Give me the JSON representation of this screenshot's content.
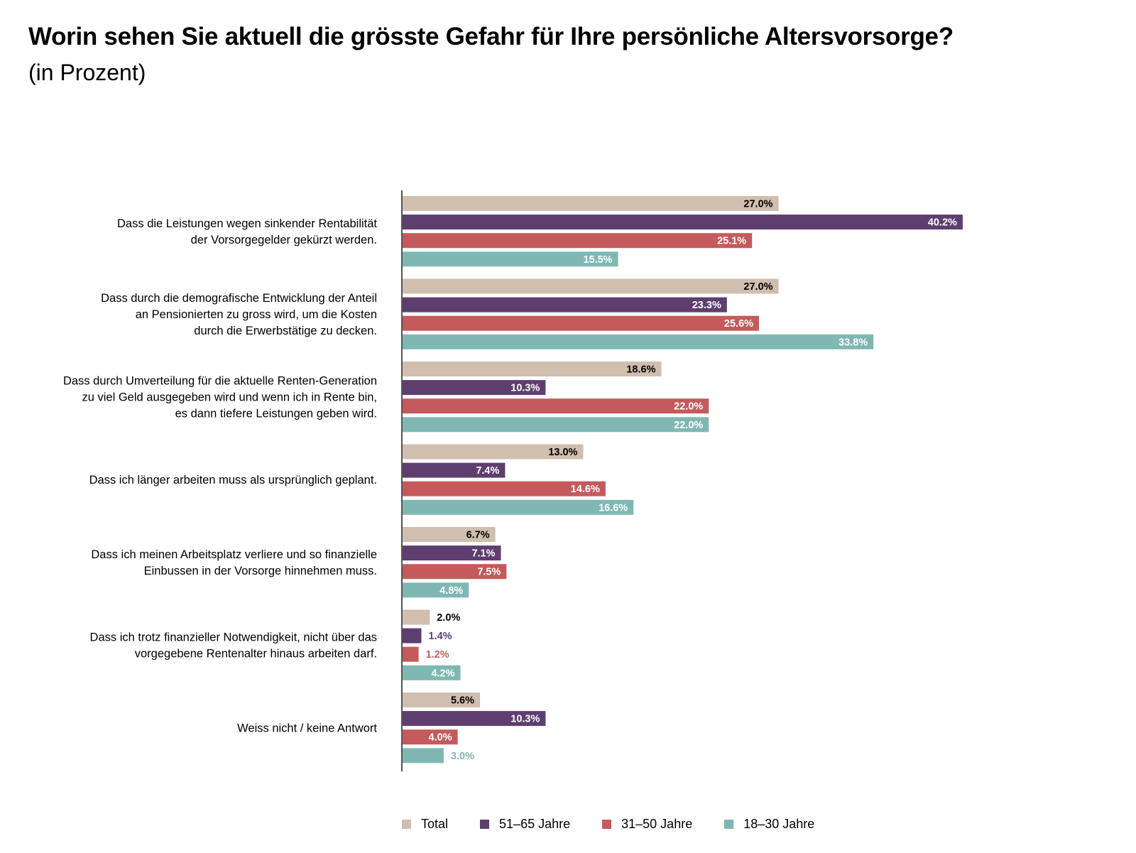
{
  "header": {
    "title": "Worin sehen Sie aktuell die grösste Gefahr für Ihre persönliche Altersvorsorge?",
    "subtitle": "(in Prozent)"
  },
  "chart_data": {
    "type": "bar",
    "orientation": "horizontal",
    "title": "Worin sehen Sie aktuell die grösste Gefahr für Ihre persönliche Altersvorsorge?",
    "subtitle": "(in Prozent)",
    "xlabel": "",
    "ylabel": "",
    "xlim": [
      0,
      40.2
    ],
    "grid": false,
    "legend_position": "bottom",
    "categories": [
      [
        "Dass die Leistungen wegen sinkender Rentabilität",
        "der Vorsorgegelder gekürzt werden."
      ],
      [
        "Dass durch die demografische Entwicklung der Anteil",
        "an Pensionierten zu gross wird, um die Kosten",
        "durch die Erwerbstätige zu decken."
      ],
      [
        "Dass durch Umverteilung für die aktuelle Renten-Generation",
        "zu viel Geld ausgegeben wird und wenn ich in Rente bin,",
        "es dann tiefere Leistungen geben wird."
      ],
      [
        "Dass ich länger arbeiten muss als ursprünglich geplant."
      ],
      [
        "Dass ich meinen Arbeitsplatz verliere und so finanzielle",
        "Einbussen in der Vorsorge hinnehmen muss."
      ],
      [
        "Dass ich trotz finanzieller Notwendigkeit, nicht über das",
        "vorgegebene Rentenalter hinaus arbeiten darf."
      ],
      [
        "Weiss nicht / keine Antwort"
      ]
    ],
    "series": [
      {
        "name": "Total",
        "color": "#d0beae",
        "label_color": "#000000",
        "values": [
          27.0,
          27.0,
          18.6,
          13.0,
          6.7,
          2.0,
          5.6
        ],
        "labels": [
          "27.0%",
          "27.0%",
          "18.6%",
          "13.0%",
          "6.7%",
          "2.0%",
          "5.6%"
        ]
      },
      {
        "name": "51–65 Jahre",
        "color": "#5e3e6f",
        "label_color": "#5e3e6f",
        "values": [
          40.2,
          23.3,
          10.3,
          7.4,
          7.1,
          1.4,
          10.3
        ],
        "labels": [
          "40.2%",
          "23.3%",
          "10.3%",
          "7.4%",
          "7.1%",
          "1.4%",
          "10.3%"
        ]
      },
      {
        "name": "31–50 Jahre",
        "color": "#c45a5c",
        "label_color": "#c45a5c",
        "values": [
          25.1,
          25.6,
          22.0,
          14.6,
          7.5,
          1.2,
          4.0
        ],
        "labels": [
          "25.1%",
          "25.6%",
          "22.0%",
          "14.6%",
          "7.5%",
          "1.2%",
          "4.0%"
        ]
      },
      {
        "name": "18–30 Jahre",
        "color": "#7fb8b3",
        "label_color": "#7fb8b3",
        "values": [
          15.5,
          33.8,
          22.0,
          16.6,
          4.8,
          4.2,
          3.0
        ],
        "labels": [
          "15.5%",
          "33.8%",
          "22.0%",
          "16.6%",
          "4.8%",
          "4.2%",
          "3.0%"
        ]
      }
    ]
  },
  "legend": {
    "items": [
      {
        "label": "Total",
        "color": "#d0beae"
      },
      {
        "label": "51–65 Jahre",
        "color": "#5e3e6f"
      },
      {
        "label": "31–50 Jahre",
        "color": "#c45a5c"
      },
      {
        "label": "18–30 Jahre",
        "color": "#7fb8b3"
      }
    ]
  }
}
